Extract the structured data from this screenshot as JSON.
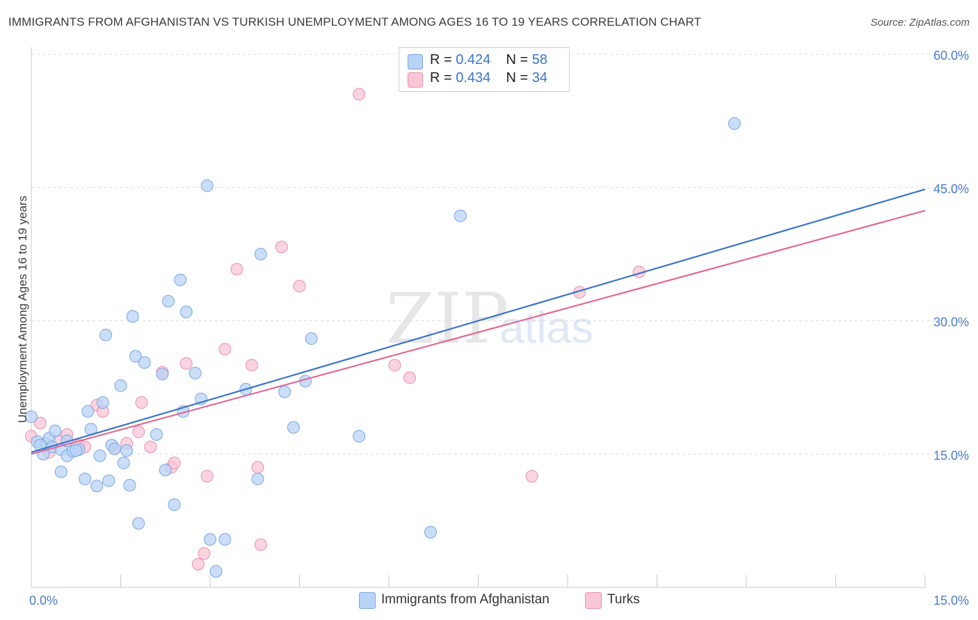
{
  "header": {
    "title": "IMMIGRANTS FROM AFGHANISTAN VS TURKISH UNEMPLOYMENT AMONG AGES 16 TO 19 YEARS CORRELATION CHART",
    "source": "Source: ZipAtlas.com"
  },
  "watermark": {
    "zip": "ZIP",
    "atlas": "atlas"
  },
  "legend": {
    "series1": {
      "r_label": "R = ",
      "r_value": "0.424",
      "n_label": "N = ",
      "n_value": "58"
    },
    "series2": {
      "r_label": "R = ",
      "r_value": "0.434",
      "n_label": "N = ",
      "n_value": "34"
    }
  },
  "bottom_legend": {
    "series1": "Immigrants from Afghanistan",
    "series2": "Turks"
  },
  "colors": {
    "blue_fill": "#b8d3f5",
    "blue_stroke": "#7aa6e0",
    "blue_line": "#3a74c9",
    "pink_fill": "#f8c6d6",
    "pink_stroke": "#e890ad",
    "pink_line": "#e06a93",
    "grid": "#dcdcdc",
    "tick_text": "#4a7cc9"
  },
  "chart_data": {
    "type": "scatter",
    "title": "IMMIGRANTS FROM AFGHANISTAN VS TURKISH UNEMPLOYMENT AMONG AGES 16 TO 19 YEARS CORRELATION CHART",
    "xlabel": "",
    "ylabel": "Unemployment Among Ages 16 to 19 years",
    "xlim": [
      0,
      15
    ],
    "ylim": [
      0,
      60
    ],
    "x_tick_labels": [
      {
        "value": 0,
        "label": "0.0%"
      },
      {
        "value": 15,
        "label": "15.0%"
      }
    ],
    "y_tick_labels": [
      {
        "value": 15,
        "label": "15.0%"
      },
      {
        "value": 30,
        "label": "30.0%"
      },
      {
        "value": 45,
        "label": "45.0%"
      },
      {
        "value": 60,
        "label": "60.0%"
      }
    ],
    "series": [
      {
        "name": "Immigrants from Afghanistan",
        "trend": {
          "x0": 0,
          "y0": 15.2,
          "x1": 15,
          "y1": 44.8
        },
        "points": [
          {
            "x": 0.0,
            "y": 19.2
          },
          {
            "x": 0.1,
            "y": 16.4
          },
          {
            "x": 0.2,
            "y": 15.0
          },
          {
            "x": 0.25,
            "y": 16.2
          },
          {
            "x": 0.3,
            "y": 16.8
          },
          {
            "x": 0.35,
            "y": 15.8
          },
          {
            "x": 0.4,
            "y": 17.6
          },
          {
            "x": 0.5,
            "y": 15.5
          },
          {
            "x": 0.5,
            "y": 13.0
          },
          {
            "x": 0.6,
            "y": 14.8
          },
          {
            "x": 0.6,
            "y": 16.5
          },
          {
            "x": 0.7,
            "y": 15.3
          },
          {
            "x": 0.8,
            "y": 15.5
          },
          {
            "x": 0.9,
            "y": 12.2
          },
          {
            "x": 0.95,
            "y": 19.8
          },
          {
            "x": 1.0,
            "y": 17.8
          },
          {
            "x": 1.1,
            "y": 11.4
          },
          {
            "x": 1.15,
            "y": 14.8
          },
          {
            "x": 1.2,
            "y": 20.8
          },
          {
            "x": 1.25,
            "y": 28.4
          },
          {
            "x": 1.3,
            "y": 12.0
          },
          {
            "x": 1.35,
            "y": 16.0
          },
          {
            "x": 1.4,
            "y": 15.6
          },
          {
            "x": 1.5,
            "y": 22.7
          },
          {
            "x": 1.55,
            "y": 14.0
          },
          {
            "x": 1.6,
            "y": 15.4
          },
          {
            "x": 1.65,
            "y": 11.5
          },
          {
            "x": 1.7,
            "y": 30.5
          },
          {
            "x": 1.75,
            "y": 26.0
          },
          {
            "x": 1.8,
            "y": 7.2
          },
          {
            "x": 1.9,
            "y": 25.3
          },
          {
            "x": 2.1,
            "y": 17.2
          },
          {
            "x": 2.2,
            "y": 24.0
          },
          {
            "x": 2.25,
            "y": 13.2
          },
          {
            "x": 2.3,
            "y": 32.2
          },
          {
            "x": 2.4,
            "y": 9.3
          },
          {
            "x": 2.5,
            "y": 34.6
          },
          {
            "x": 2.55,
            "y": 19.8
          },
          {
            "x": 2.6,
            "y": 31.0
          },
          {
            "x": 2.75,
            "y": 24.1
          },
          {
            "x": 2.85,
            "y": 21.2
          },
          {
            "x": 2.95,
            "y": 45.2
          },
          {
            "x": 3.0,
            "y": 5.4
          },
          {
            "x": 3.1,
            "y": 1.8
          },
          {
            "x": 3.25,
            "y": 5.4
          },
          {
            "x": 3.6,
            "y": 22.3
          },
          {
            "x": 3.8,
            "y": 12.2
          },
          {
            "x": 3.85,
            "y": 37.5
          },
          {
            "x": 4.25,
            "y": 22.0
          },
          {
            "x": 4.4,
            "y": 18.0
          },
          {
            "x": 4.6,
            "y": 23.2
          },
          {
            "x": 4.7,
            "y": 28.0
          },
          {
            "x": 5.5,
            "y": 17.0
          },
          {
            "x": 6.7,
            "y": 6.2
          },
          {
            "x": 7.2,
            "y": 41.8
          },
          {
            "x": 11.8,
            "y": 52.2
          },
          {
            "x": 0.15,
            "y": 16.0
          },
          {
            "x": 0.75,
            "y": 15.4
          }
        ]
      },
      {
        "name": "Turks",
        "trend": {
          "x0": 0,
          "y0": 15.0,
          "x1": 15,
          "y1": 42.4
        },
        "points": [
          {
            "x": 0.0,
            "y": 17.0
          },
          {
            "x": 0.15,
            "y": 18.5
          },
          {
            "x": 0.3,
            "y": 15.2
          },
          {
            "x": 0.45,
            "y": 16.5
          },
          {
            "x": 0.6,
            "y": 17.2
          },
          {
            "x": 0.8,
            "y": 16.0
          },
          {
            "x": 0.9,
            "y": 15.8
          },
          {
            "x": 1.1,
            "y": 20.5
          },
          {
            "x": 1.2,
            "y": 19.8
          },
          {
            "x": 1.4,
            "y": 15.6
          },
          {
            "x": 1.6,
            "y": 16.2
          },
          {
            "x": 1.8,
            "y": 17.5
          },
          {
            "x": 1.85,
            "y": 20.8
          },
          {
            "x": 2.0,
            "y": 15.8
          },
          {
            "x": 2.2,
            "y": 24.2
          },
          {
            "x": 2.35,
            "y": 13.5
          },
          {
            "x": 2.4,
            "y": 14.0
          },
          {
            "x": 2.6,
            "y": 25.2
          },
          {
            "x": 2.8,
            "y": 2.6
          },
          {
            "x": 2.9,
            "y": 3.8
          },
          {
            "x": 2.95,
            "y": 12.5
          },
          {
            "x": 3.25,
            "y": 26.8
          },
          {
            "x": 3.45,
            "y": 35.8
          },
          {
            "x": 3.7,
            "y": 25.0
          },
          {
            "x": 3.8,
            "y": 13.5
          },
          {
            "x": 3.85,
            "y": 4.8
          },
          {
            "x": 4.2,
            "y": 38.3
          },
          {
            "x": 4.5,
            "y": 33.9
          },
          {
            "x": 5.5,
            "y": 55.5
          },
          {
            "x": 6.1,
            "y": 25.0
          },
          {
            "x": 6.35,
            "y": 23.6
          },
          {
            "x": 8.4,
            "y": 12.5
          },
          {
            "x": 9.2,
            "y": 33.2
          },
          {
            "x": 10.2,
            "y": 35.5
          }
        ]
      }
    ]
  }
}
